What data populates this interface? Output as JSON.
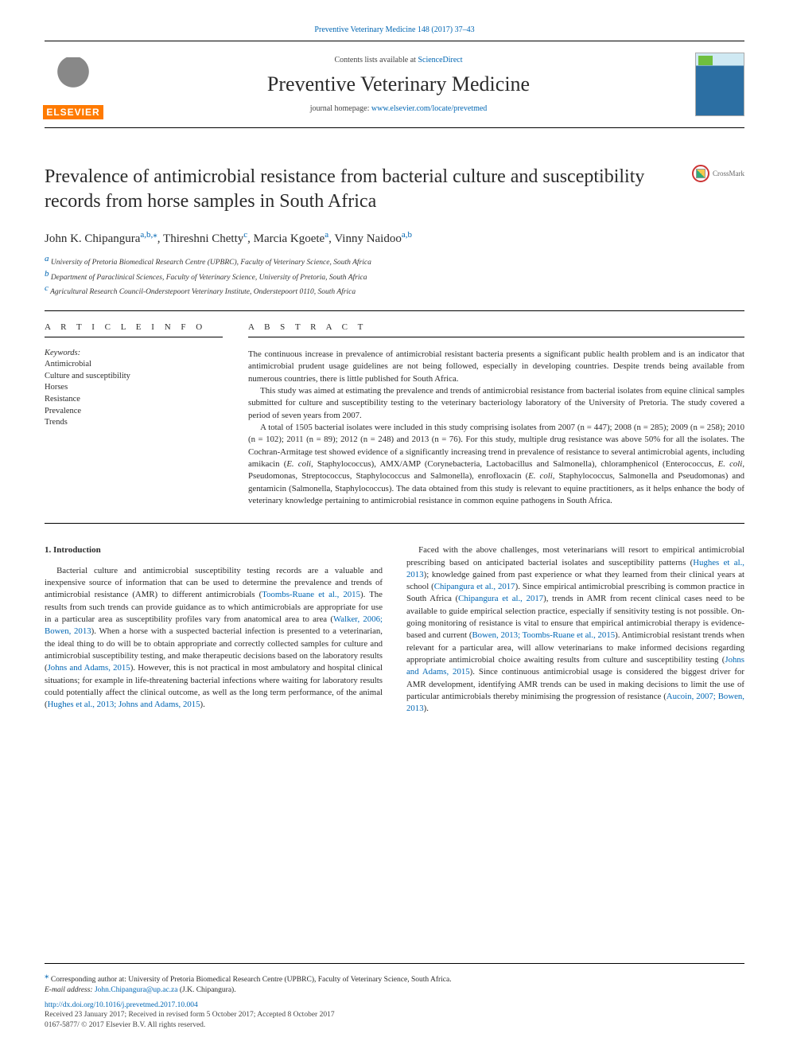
{
  "topbar": {
    "citation": "Preventive Veterinary Medicine 148 (2017) 37–43"
  },
  "header": {
    "contents_prefix": "Contents lists available at ",
    "contents_link": "ScienceDirect",
    "journal_name": "Preventive Veterinary Medicine",
    "homepage_prefix": "journal homepage: ",
    "homepage_link": "www.elsevier.com/locate/prevetmed",
    "elsevier_word": "ELSEVIER"
  },
  "crossmark_label": "CrossMark",
  "title": "Prevalence of antimicrobial resistance from bacterial culture and susceptibility records from horse samples in South Africa",
  "authors": {
    "a1": {
      "name": "John K. Chipangura",
      "sup": "a,b,",
      "star": "⁎"
    },
    "a2": {
      "name": "Thireshni Chetty",
      "sup": "c"
    },
    "a3": {
      "name": "Marcia Kgoete",
      "sup": "a"
    },
    "a4": {
      "name": "Vinny Naidoo",
      "sup": "a,b"
    }
  },
  "affils": {
    "a": "University of Pretoria Biomedical Research Centre (UPBRC), Faculty of Veterinary Science, South Africa",
    "b": "Department of Paraclinical Sciences, Faculty of Veterinary Science, University of Pretoria, South Africa",
    "c": "Agricultural Research Council-Onderstepoort Veterinary Institute, Onderstepoort 0110, South Africa"
  },
  "headings": {
    "article_info": "A R T I C L E  I N F O",
    "abstract": "A B S T R A C T",
    "keywords_label": "Keywords:",
    "intro": "1. Introduction"
  },
  "keywords": [
    "Antimicrobial",
    "Culture and susceptibility",
    "Horses",
    "Resistance",
    "Prevalence",
    "Trends"
  ],
  "abstract": {
    "p1": "The continuous increase in prevalence of antimicrobial resistant bacteria presents a significant public health problem and is an indicator that antimicrobial prudent usage guidelines are not being followed, especially in developing countries. Despite trends being available from numerous countries, there is little published for South Africa.",
    "p2": "This study was aimed at estimating the prevalence and trends of antimicrobial resistance from bacterial isolates from equine clinical samples submitted for culture and susceptibility testing to the veterinary bacteriology laboratory of the University of Pretoria. The study covered a period of seven years from 2007.",
    "p3_a": "A total of 1505 bacterial isolates were included in this study comprising isolates from 2007 (n = 447); 2008 (n = 285); 2009 (n = 258); 2010 (n = 102); 2011 (n = 89); 2012 (n = 248) and 2013 (n = 76). For this study, multiple drug resistance was above 50% for all the isolates. The Cochran-Armitage test showed evidence of a significantly increasing trend in prevalence of resistance to several antimicrobial agents, including amikacin (",
    "p3_i1": "E. coli",
    "p3_b": ", Staphylococcus), AMX/AMP (Corynebacteria, Lactobacillus and Salmonella), chloramphenicol (Enterococcus, ",
    "p3_i2": "E. coli",
    "p3_c": ", Pseudomonas, Streptococcus, Staphylococcus and Salmonella), enrofloxacin (",
    "p3_i3": "E. coli",
    "p3_d": ", Staphylococcus, Salmonella and Pseudomonas) and gentamicin (Salmonella, Staphylococcus). The data obtained from this study is relevant to equine practitioners, as it helps enhance the body of veterinary knowledge pertaining to antimicrobial resistance in common equine pathogens in South Africa."
  },
  "intro": {
    "p1_a": "Bacterial culture and antimicrobial susceptibility testing records are a valuable and inexpensive source of information that can be used to determine the prevalence and trends of antimicrobial resistance (AMR) to different antimicrobials (",
    "c1": "Toombs-Ruane et al., 2015",
    "p1_b": "). The results from such trends can provide guidance as to which antimicrobials are appropriate for use in a particular area as susceptibility profiles vary from anatomical area to area (",
    "c2": "Walker, 2006; Bowen, 2013",
    "p1_c": "). When a horse with a suspected bacterial infection is presented to a veterinarian, the ideal thing to do will be to obtain appropriate and correctly collected samples for culture and antimicrobial susceptibility testing, and make therapeutic decisions based on the laboratory results (",
    "c3": "Johns and Adams, 2015",
    "p1_d": "). However, this is not practical in most ambulatory and hospital clinical situations; for example in life-threatening bacterial infections where waiting for laboratory results could potentially affect the clinical outcome, as well as the long term performance, of the animal (",
    "c4": "Hughes et al., 2013; Johns and Adams, 2015",
    "p1_e": ").",
    "p2_a": "Faced with the above challenges, most veterinarians will resort to empirical antimicrobial prescribing based on anticipated bacterial isolates and susceptibility patterns (",
    "c5": "Hughes et al., 2013",
    "p2_b": "); knowledge gained from past experience or what they learned from their clinical years at school (",
    "c6": "Chipangura et al., 2017",
    "p2_c": "). Since empirical antimicrobial prescribing is common practice in South Africa (",
    "c7": "Chipangura et al., 2017",
    "p2_d": "), trends in AMR from recent clinical cases need to be available to guide empirical selection practice, especially if sensitivity testing is not possible. On-going monitoring of resistance is vital to ensure that empirical antimicrobial therapy is evidence-based and current (",
    "c8": "Bowen, 2013; Toombs-Ruane et al., 2015",
    "p2_e": "). Antimicrobial resistant trends when relevant for a particular area, will allow veterinarians to make informed decisions regarding appropriate antimicrobial choice awaiting results from culture and susceptibility testing (",
    "c9": "Johns and Adams, 2015",
    "p2_f": "). Since continuous antimicrobial usage is considered the biggest driver for AMR development, identifying AMR trends can be used in making decisions to limit the use of particular antimicrobials thereby minimising the progression of resistance (",
    "c10": "Aucoin, 2007; Bowen, 2013",
    "p2_g": ")."
  },
  "footer": {
    "corr_star": "⁎",
    "corr_text": " Corresponding author at: University of Pretoria Biomedical Research Centre (UPBRC), Faculty of Veterinary Science, South Africa.",
    "email_label": "E-mail address: ",
    "email": "John.Chipangura@up.ac.za",
    "email_suffix": " (J.K. Chipangura).",
    "doi": "http://dx.doi.org/10.1016/j.prevetmed.2017.10.004",
    "received": "Received 23 January 2017; Received in revised form 5 October 2017; Accepted 8 October 2017",
    "issn": "0167-5877/ © 2017 Elsevier B.V. All rights reserved."
  },
  "colors": {
    "link": "#0066b3",
    "text": "#2b2b2b",
    "elsevier_orange": "#ff7a00"
  }
}
